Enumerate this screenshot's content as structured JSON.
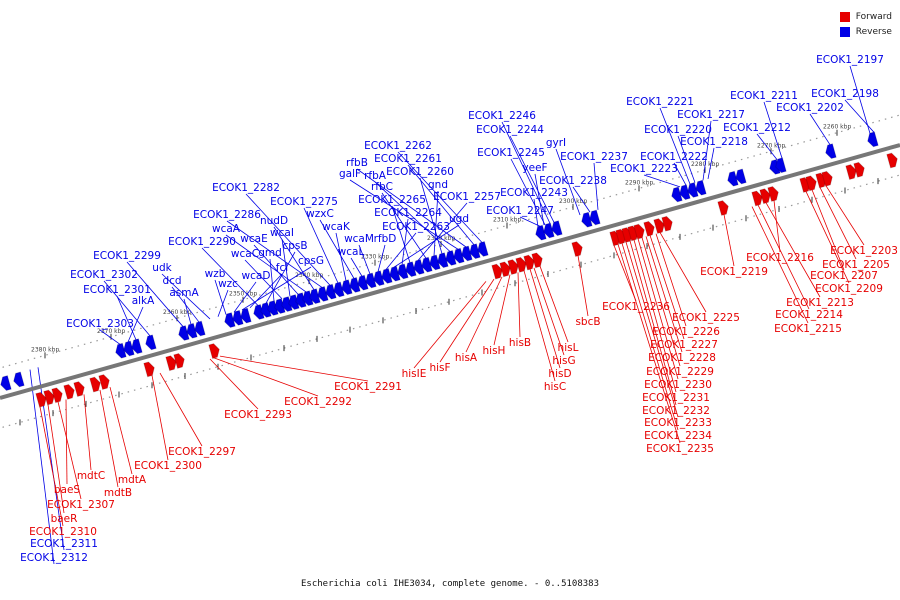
{
  "colors": {
    "forward": "#e60000",
    "reverse": "#0000e6",
    "backbone": "#777777"
  },
  "legend": [
    {
      "label": "Forward",
      "color": "#e60000"
    },
    {
      "label": "Reverse",
      "color": "#0000e6"
    }
  ],
  "caption": "Escherichia coli IHE3034, complete genome. - 0..5108383",
  "ticks": [
    "2380 kbp",
    "2370 kbp",
    "2360 kbp",
    "2350 kbp",
    "2340 kbp",
    "2330 kbp",
    "2320 kbp",
    "2310 kbp",
    "2300 kbp",
    "2290 kbp",
    "2280 kbp",
    "2270 kbp",
    "2260 kbp"
  ],
  "reverse_labels": [
    "ECOK1_2197",
    "ECOK1_2198",
    "ECOK1_2202",
    "ECOK1_2211",
    "ECOK1_2212",
    "ECOK1_2221",
    "ECOK1_2217",
    "ECOK1_2220",
    "ECOK1_2218",
    "ECOK1_2222",
    "ECOK1_2223",
    "ECOK1_2237",
    "ECOK1_2238",
    "gyrI",
    "ECOK1_2246",
    "ECOK1_2244",
    "ECOK1_2245",
    "yeeF",
    "ECOK1_2243",
    "ECOK1_2247",
    "ECOK1_2262",
    "ECOK1_2261",
    "rfbB",
    "galF",
    "rfbA",
    "ECOK1_2260",
    "gnd",
    "rfbC",
    "ECOK1_2257",
    "ECOK1_2265",
    "ECOK1_2264",
    "ugd",
    "ECOK1_2263",
    "rfbD",
    "wcaM",
    "wcaL",
    "wzxC",
    "wcaK",
    "ECOK1_2275",
    "ECOK1_2282",
    "ECOK1_2286",
    "nudD",
    "wcaA",
    "wcaE",
    "wcaI",
    "wcaC",
    "gmd",
    "cpsB",
    "ECOK1_2290",
    "fcl",
    "cpsG",
    "wcaD",
    "wzb",
    "wzc",
    "udk",
    "dcd",
    "asmA",
    "ECOK1_2299",
    "ECOK1_2302",
    "ECOK1_2301",
    "alkA",
    "ECOK1_2303",
    "ECOK1_2312",
    "ECOK1_2311"
  ],
  "forward_labels": [
    "ECOK1_2203",
    "ECOK1_2205",
    "ECOK1_2207",
    "ECOK1_2209",
    "ECOK1_2216",
    "ECOK1_2213",
    "ECOK1_2214",
    "ECOK1_2215",
    "ECOK1_2219",
    "ECOK1_2225",
    "ECOK1_2226",
    "ECOK1_2227",
    "ECOK1_2228",
    "ECOK1_2229",
    "ECOK1_2230",
    "ECOK1_2231",
    "ECOK1_2232",
    "ECOK1_2233",
    "ECOK1_2234",
    "ECOK1_2235",
    "ECOK1_2236",
    "sbcB",
    "hisL",
    "hisG",
    "hisD",
    "hisC",
    "hisB",
    "hisH",
    "hisA",
    "hisF",
    "hisIE",
    "ECOK1_2291",
    "ECOK1_2292",
    "ECOK1_2293",
    "ECOK1_2297",
    "ECOK1_2300",
    "mdtA",
    "mdtB",
    "mdtC",
    "baeS",
    "ECOK1_2307",
    "baeR",
    "ECOK1_2310"
  ]
}
